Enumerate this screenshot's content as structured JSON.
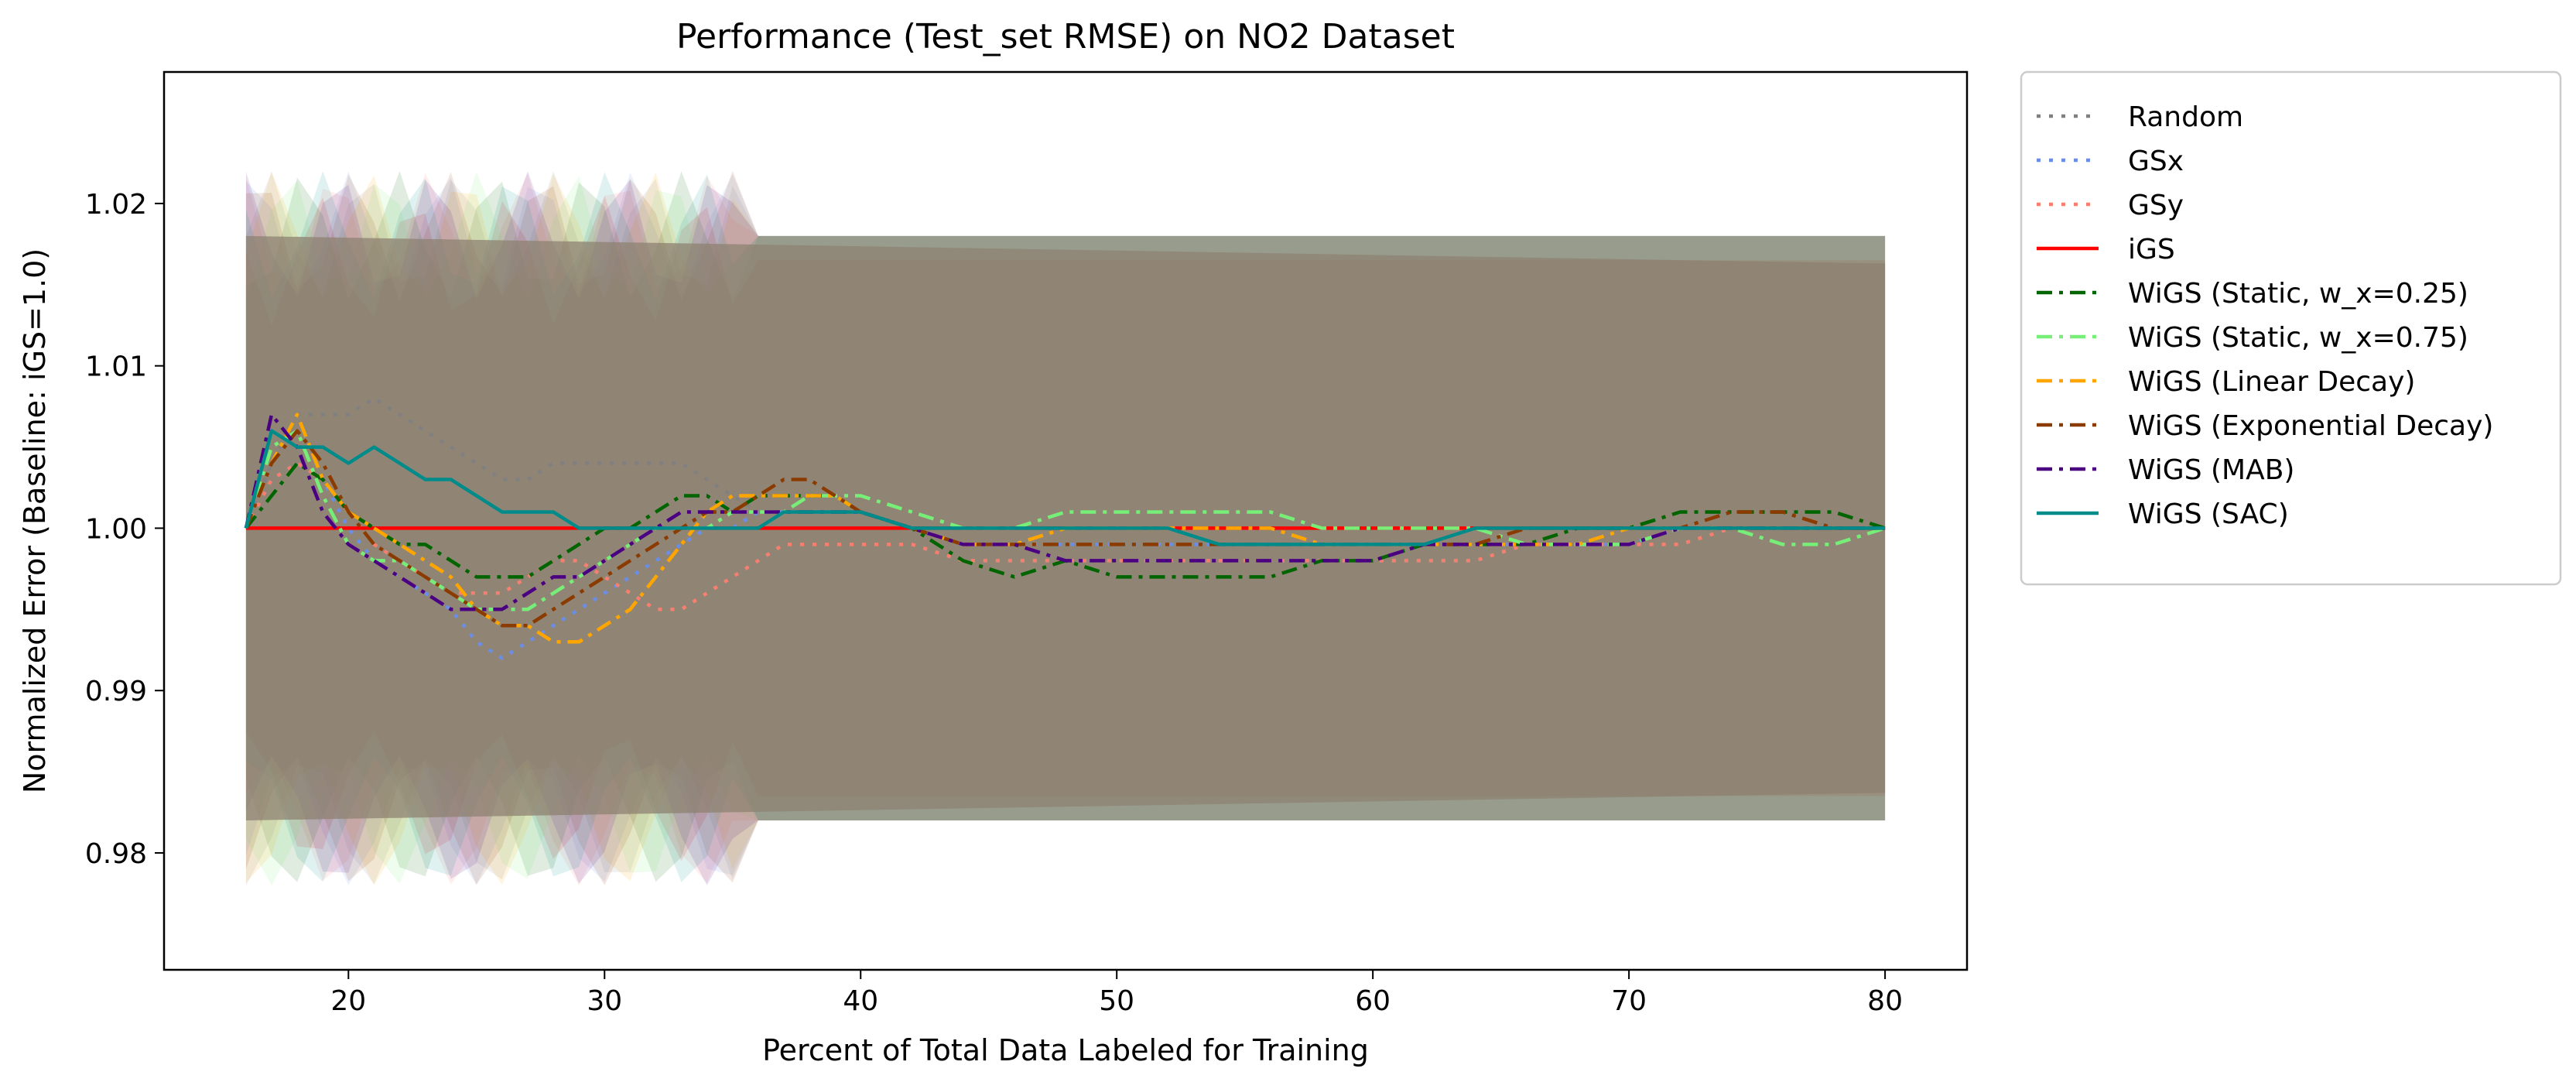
{
  "chart_data": {
    "type": "line",
    "title": "Performance (Test_set RMSE) on NO2 Dataset",
    "xlabel": "Percent of Total Data Labeled for Training",
    "ylabel": "Normalized Error (Baseline: iGS=1.0)",
    "xlim": [
      12.8,
      83.2
    ],
    "ylim": [
      0.9728,
      1.0281
    ],
    "xticks": [
      20,
      30,
      40,
      50,
      60,
      70,
      80
    ],
    "yticks": [
      0.98,
      0.99,
      1.0,
      1.01,
      1.02
    ],
    "ytick_labels": [
      "0.98",
      "0.99",
      "1.00",
      "1.01",
      "1.02"
    ],
    "grid": false,
    "legend_position": "outside-right",
    "x": [
      16,
      17,
      18,
      19,
      20,
      21,
      22,
      23,
      24,
      25,
      26,
      27,
      28,
      29,
      30,
      31,
      32,
      33,
      34,
      35,
      36,
      37,
      38,
      39,
      40,
      42,
      44,
      46,
      48,
      50,
      52,
      54,
      56,
      58,
      60,
      62,
      64,
      66,
      68,
      70,
      72,
      74,
      76,
      78,
      80
    ],
    "series": [
      {
        "name": "Random",
        "color": "#808080",
        "dash": "dot",
        "band": [
          0.982,
          1.018
        ],
        "values": [
          1.0,
          1.004,
          1.007,
          1.007,
          1.007,
          1.008,
          1.007,
          1.006,
          1.005,
          1.004,
          1.003,
          1.003,
          1.004,
          1.004,
          1.004,
          1.004,
          1.004,
          1.004,
          1.003,
          1.002,
          1.001,
          1.001,
          1.001,
          1.001,
          1.001,
          1.0,
          1.0,
          1.0,
          1.0,
          1.0,
          1.0,
          1.0,
          1.0,
          1.0,
          1.0,
          1.0,
          1.0,
          1.0,
          1.0,
          1.0,
          1.0,
          1.0,
          1.0,
          1.0,
          1.0
        ]
      },
      {
        "name": "GSx",
        "color": "#6a8ee8",
        "dash": "dot",
        "band": [
          0.982,
          1.018
        ],
        "values": [
          1.0,
          1.003,
          1.004,
          1.003,
          1.0,
          0.998,
          0.997,
          0.996,
          0.995,
          0.993,
          0.992,
          0.993,
          0.994,
          0.995,
          0.996,
          0.997,
          0.998,
          0.999,
          1.0,
          1.0,
          1.001,
          1.001,
          1.001,
          1.001,
          1.001,
          1.0,
          0.999,
          0.999,
          0.999,
          0.999,
          0.999,
          0.999,
          0.999,
          0.999,
          0.999,
          0.999,
          0.999,
          0.999,
          0.999,
          0.999,
          1.0,
          1.0,
          1.0,
          1.0,
          1.0
        ]
      },
      {
        "name": "GSy",
        "color": "#f77f70",
        "dash": "dot",
        "band": [
          0.982,
          1.018
        ],
        "values": [
          1.0,
          1.003,
          1.004,
          1.003,
          1.001,
          0.999,
          0.998,
          0.997,
          0.996,
          0.996,
          0.996,
          0.997,
          0.998,
          0.998,
          0.997,
          0.996,
          0.995,
          0.995,
          0.996,
          0.997,
          0.998,
          0.999,
          0.999,
          0.999,
          0.999,
          0.999,
          0.998,
          0.998,
          0.998,
          0.998,
          0.998,
          0.998,
          0.998,
          0.998,
          0.998,
          0.998,
          0.998,
          0.999,
          0.999,
          0.999,
          0.999,
          1.0,
          1.0,
          1.0,
          1.0
        ]
      },
      {
        "name": "iGS",
        "color": "#ff0000",
        "dash": "solid",
        "band": [
          0.9835,
          1.0165
        ],
        "values": [
          1.0,
          1.0,
          1.0,
          1.0,
          1.0,
          1.0,
          1.0,
          1.0,
          1.0,
          1.0,
          1.0,
          1.0,
          1.0,
          1.0,
          1.0,
          1.0,
          1.0,
          1.0,
          1.0,
          1.0,
          1.0,
          1.0,
          1.0,
          1.0,
          1.0,
          1.0,
          1.0,
          1.0,
          1.0,
          1.0,
          1.0,
          1.0,
          1.0,
          1.0,
          1.0,
          1.0,
          1.0,
          1.0,
          1.0,
          1.0,
          1.0,
          1.0,
          1.0,
          1.0,
          1.0
        ]
      },
      {
        "name": "WiGS (Static, w_x=0.25)",
        "color": "#006400",
        "dash": "dashdot",
        "band": [
          0.982,
          1.018
        ],
        "values": [
          1.0,
          1.002,
          1.004,
          1.003,
          1.001,
          1.0,
          0.999,
          0.999,
          0.998,
          0.997,
          0.997,
          0.997,
          0.998,
          0.999,
          1.0,
          1.0,
          1.001,
          1.002,
          1.002,
          1.001,
          1.002,
          1.002,
          1.002,
          1.002,
          1.001,
          1.0,
          0.998,
          0.997,
          0.998,
          0.997,
          0.997,
          0.997,
          0.997,
          0.998,
          0.998,
          0.999,
          0.999,
          0.999,
          1.0,
          1.0,
          1.001,
          1.001,
          1.001,
          1.001,
          1.0
        ]
      },
      {
        "name": "WiGS (Static, w_x=0.75)",
        "color": "#77ee77",
        "dash": "dashdot",
        "band": [
          0.982,
          1.018
        ],
        "values": [
          1.0,
          1.005,
          1.006,
          1.002,
          0.999,
          0.998,
          0.998,
          0.997,
          0.996,
          0.995,
          0.995,
          0.995,
          0.996,
          0.997,
          0.998,
          0.999,
          1.0,
          1.0,
          1.0,
          1.001,
          1.001,
          1.001,
          1.002,
          1.002,
          1.002,
          1.001,
          1.0,
          1.0,
          1.001,
          1.001,
          1.001,
          1.001,
          1.001,
          1.0,
          1.0,
          1.0,
          1.0,
          0.999,
          0.999,
          0.999,
          1.0,
          1.0,
          0.999,
          0.999,
          1.0
        ]
      },
      {
        "name": "WiGS (Linear Decay)",
        "color": "#ffa500",
        "dash": "dashdot",
        "band": [
          0.982,
          1.018
        ],
        "values": [
          1.0,
          1.004,
          1.007,
          1.003,
          1.001,
          1.0,
          0.999,
          0.998,
          0.997,
          0.995,
          0.994,
          0.994,
          0.993,
          0.993,
          0.994,
          0.995,
          0.997,
          0.999,
          1.001,
          1.002,
          1.002,
          1.002,
          1.002,
          1.002,
          1.001,
          1.0,
          0.999,
          0.999,
          1.0,
          1.0,
          1.0,
          1.0,
          1.0,
          0.999,
          0.999,
          0.999,
          0.999,
          0.999,
          0.999,
          1.0,
          1.0,
          1.0,
          1.0,
          1.0,
          1.0
        ]
      },
      {
        "name": "WiGS (Exponential Decay)",
        "color": "#8b3a00",
        "dash": "dashdot",
        "band": [
          0.982,
          1.018
        ],
        "values": [
          1.0,
          1.004,
          1.006,
          1.004,
          1.001,
          0.999,
          0.998,
          0.997,
          0.996,
          0.995,
          0.994,
          0.994,
          0.995,
          0.996,
          0.997,
          0.998,
          0.999,
          1.0,
          1.001,
          1.001,
          1.002,
          1.003,
          1.003,
          1.002,
          1.001,
          1.0,
          0.999,
          0.999,
          0.999,
          0.999,
          0.999,
          0.999,
          0.999,
          0.999,
          0.999,
          0.999,
          0.999,
          1.0,
          1.0,
          1.0,
          1.0,
          1.001,
          1.001,
          1.0,
          1.0
        ]
      },
      {
        "name": "WiGS (MAB)",
        "color": "#4b0082",
        "dash": "dashdot",
        "band": [
          0.982,
          1.018
        ],
        "values": [
          1.0,
          1.007,
          1.005,
          1.001,
          0.999,
          0.998,
          0.997,
          0.996,
          0.995,
          0.995,
          0.995,
          0.996,
          0.997,
          0.997,
          0.998,
          0.999,
          1.0,
          1.001,
          1.001,
          1.001,
          1.001,
          1.001,
          1.001,
          1.001,
          1.001,
          1.0,
          0.999,
          0.999,
          0.998,
          0.998,
          0.998,
          0.998,
          0.998,
          0.998,
          0.998,
          0.999,
          0.999,
          0.999,
          0.999,
          0.999,
          1.0,
          1.0,
          1.0,
          1.0,
          1.0
        ]
      },
      {
        "name": "WiGS (SAC)",
        "color": "#008b8b",
        "dash": "solid",
        "band": [
          0.982,
          1.018
        ],
        "values": [
          1.0,
          1.006,
          1.005,
          1.005,
          1.004,
          1.005,
          1.004,
          1.003,
          1.003,
          1.002,
          1.001,
          1.001,
          1.001,
          1.0,
          1.0,
          1.0,
          1.0,
          1.0,
          1.0,
          1.0,
          1.0,
          1.001,
          1.001,
          1.001,
          1.001,
          1.0,
          1.0,
          1.0,
          1.0,
          1.0,
          1.0,
          0.999,
          0.999,
          0.999,
          0.999,
          0.999,
          1.0,
          1.0,
          1.0,
          1.0,
          1.0,
          1.0,
          1.0,
          1.0,
          1.0
        ]
      }
    ]
  }
}
